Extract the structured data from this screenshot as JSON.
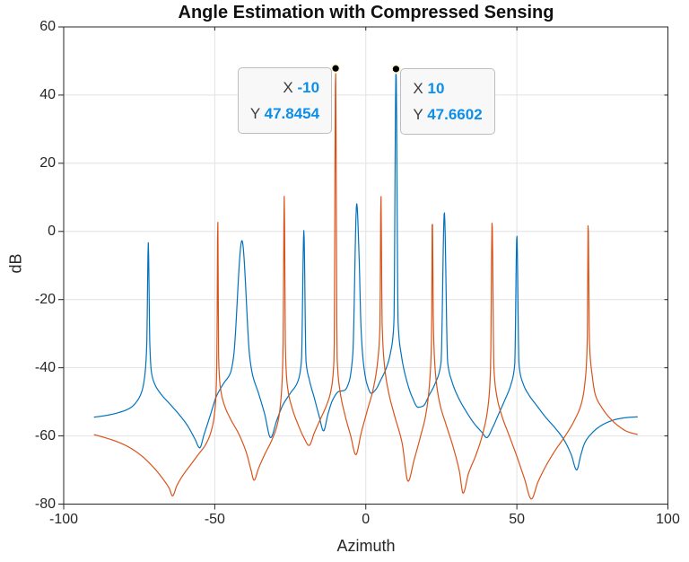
{
  "chart_data": {
    "type": "line",
    "title": "Angle Estimation with Compressed Sensing",
    "xlabel": "Azimuth",
    "ylabel": "dB",
    "xlim": [
      -100,
      100
    ],
    "ylim": [
      -80,
      60
    ],
    "x_ticks": [
      "-100",
      "-50",
      "0",
      "50",
      "100"
    ],
    "x_tick_values": [
      -100,
      -50,
      0,
      50,
      100
    ],
    "y_ticks": [
      "-80",
      "-60",
      "-40",
      "-20",
      "0",
      "20",
      "40",
      "60"
    ],
    "y_tick_values": [
      -80,
      -60,
      -40,
      -20,
      0,
      20,
      40,
      60
    ],
    "grid": true,
    "legend": null,
    "style": {
      "axis_color": "#262626",
      "grid_color": "#e2e2e2",
      "tick_len_out": 6,
      "tick_len_in": 4,
      "datatip_value_color": "#0d8ee8",
      "datatip_label_color": "#3c3c3c",
      "marker_fill": "#000000",
      "marker_ring": "#fffbdc"
    },
    "series": [
      {
        "name": "blue-spectrum",
        "color": "#0072BD",
        "points": [
          [
            -90,
            -54.5
          ],
          [
            -86,
            -54
          ],
          [
            -82,
            -53.2
          ],
          [
            -78,
            -51.8
          ],
          [
            -75.5,
            -49.5
          ],
          [
            -74,
            -46.5
          ],
          [
            -73,
            -41
          ],
          [
            -72.5,
            -33
          ],
          [
            -72,
            -3.3
          ],
          [
            -71.5,
            -33
          ],
          [
            -71,
            -41
          ],
          [
            -70,
            -44.5
          ],
          [
            -68,
            -47.5
          ],
          [
            -65,
            -50.5
          ],
          [
            -62,
            -53.5
          ],
          [
            -59,
            -57
          ],
          [
            -56.5,
            -61
          ],
          [
            -55,
            -63.5
          ],
          [
            -53.5,
            -59.5
          ],
          [
            -51.5,
            -54
          ],
          [
            -49.5,
            -48.5
          ],
          [
            -47,
            -44.5
          ],
          [
            -44.8,
            -41.5
          ],
          [
            -43.8,
            -37
          ],
          [
            -41,
            -2.7
          ],
          [
            -38.4,
            -37
          ],
          [
            -37.5,
            -42
          ],
          [
            -35.5,
            -47.5
          ],
          [
            -33.5,
            -53.5
          ],
          [
            -31.5,
            -60.5
          ],
          [
            -29.5,
            -55.5
          ],
          [
            -27.5,
            -51
          ],
          [
            -25,
            -47.5
          ],
          [
            -22.5,
            -44
          ],
          [
            -21.3,
            -38
          ],
          [
            -20.5,
            0.3
          ],
          [
            -19.8,
            -38
          ],
          [
            -18.7,
            -43.5
          ],
          [
            -17,
            -49
          ],
          [
            -15.5,
            -54
          ],
          [
            -14,
            -58.5
          ],
          [
            -12.5,
            -53.5
          ],
          [
            -11,
            -49.5
          ],
          [
            -9,
            -47
          ],
          [
            -7,
            -46.6
          ],
          [
            -5.5,
            -44
          ],
          [
            -4.3,
            -36
          ],
          [
            -3,
            8.1
          ],
          [
            -2.2,
            -8
          ],
          [
            -1.6,
            -28
          ],
          [
            -0.8,
            -38.5
          ],
          [
            0.3,
            -44.5
          ],
          [
            1.8,
            -47.5
          ],
          [
            3.2,
            -46.5
          ],
          [
            5,
            -43.5
          ],
          [
            6.6,
            -40.5
          ],
          [
            8.2,
            -35.5
          ],
          [
            9.3,
            -27
          ],
          [
            10,
            47.6602
          ],
          [
            10.7,
            -27
          ],
          [
            11.8,
            -36.5
          ],
          [
            13.3,
            -43
          ],
          [
            15.3,
            -48.5
          ],
          [
            17.3,
            -51.6
          ],
          [
            19,
            -51.2
          ],
          [
            21,
            -48
          ],
          [
            23,
            -44.5
          ],
          [
            24.9,
            -38.5
          ],
          [
            26,
            5.6
          ],
          [
            27.1,
            -38.5
          ],
          [
            28.5,
            -44
          ],
          [
            30.5,
            -48.5
          ],
          [
            33,
            -52.5
          ],
          [
            36,
            -56.5
          ],
          [
            38.5,
            -59
          ],
          [
            40,
            -60.5
          ],
          [
            42,
            -57.5
          ],
          [
            44,
            -53.5
          ],
          [
            46,
            -49.5
          ],
          [
            48,
            -45
          ],
          [
            49.3,
            -39
          ],
          [
            50,
            -1.1
          ],
          [
            50.7,
            -39
          ],
          [
            52,
            -44.5
          ],
          [
            54,
            -48
          ],
          [
            56.5,
            -51
          ],
          [
            59.5,
            -54.5
          ],
          [
            62.5,
            -57.5
          ],
          [
            65.5,
            -61
          ],
          [
            68,
            -65.5
          ],
          [
            69.8,
            -70
          ],
          [
            71.2,
            -65.5
          ],
          [
            72.5,
            -62
          ],
          [
            74.5,
            -59.5
          ],
          [
            77,
            -57.5
          ],
          [
            80,
            -56
          ],
          [
            83,
            -55.1
          ],
          [
            86.5,
            -54.6
          ],
          [
            90,
            -54.4
          ]
        ]
      },
      {
        "name": "orange-spectrum",
        "color": "#D95319",
        "points": [
          [
            -90,
            -59.6
          ],
          [
            -86,
            -60.6
          ],
          [
            -82,
            -61.8
          ],
          [
            -78,
            -63.5
          ],
          [
            -74,
            -66
          ],
          [
            -70,
            -69.5
          ],
          [
            -67,
            -72.8
          ],
          [
            -65,
            -75.5
          ],
          [
            -64,
            -77.6
          ],
          [
            -62.5,
            -74.5
          ],
          [
            -60.5,
            -71.5
          ],
          [
            -58,
            -68.5
          ],
          [
            -55.5,
            -65.5
          ],
          [
            -53,
            -62.5
          ],
          [
            -51,
            -58
          ],
          [
            -49.8,
            -51
          ],
          [
            -49.3,
            -38
          ],
          [
            -49,
            4.6
          ],
          [
            -48.7,
            -38
          ],
          [
            -48.1,
            -46
          ],
          [
            -46.8,
            -51
          ],
          [
            -44.8,
            -55
          ],
          [
            -42,
            -59.5
          ],
          [
            -39.5,
            -65
          ],
          [
            -38,
            -70
          ],
          [
            -37,
            -73
          ],
          [
            -35.5,
            -69.5
          ],
          [
            -33.5,
            -65.5
          ],
          [
            -31,
            -61
          ],
          [
            -29,
            -55.5
          ],
          [
            -27.9,
            -47
          ],
          [
            -27.4,
            -35
          ],
          [
            -27,
            10.3
          ],
          [
            -26.6,
            -35
          ],
          [
            -26,
            -45
          ],
          [
            -24.5,
            -51.5
          ],
          [
            -22.5,
            -56.5
          ],
          [
            -20.5,
            -60.5
          ],
          [
            -18.8,
            -62.8
          ],
          [
            -17,
            -59
          ],
          [
            -15,
            -55
          ],
          [
            -13,
            -51
          ],
          [
            -11.5,
            -46.5
          ],
          [
            -10.5,
            -37
          ],
          [
            -10,
            47.8454
          ],
          [
            -9.5,
            -37
          ],
          [
            -8.5,
            -47
          ],
          [
            -7,
            -53.5
          ],
          [
            -5,
            -60
          ],
          [
            -3.3,
            -65.5
          ],
          [
            -1.5,
            -59
          ],
          [
            0.5,
            -52.5
          ],
          [
            2.5,
            -46
          ],
          [
            4,
            -37.5
          ],
          [
            4.7,
            -27
          ],
          [
            5,
            11.2
          ],
          [
            5.4,
            -27
          ],
          [
            6.2,
            -39.5
          ],
          [
            7.5,
            -47
          ],
          [
            9.5,
            -54
          ],
          [
            12,
            -62
          ],
          [
            14,
            -73.3
          ],
          [
            16,
            -67
          ],
          [
            18,
            -60.5
          ],
          [
            20,
            -53
          ],
          [
            21.3,
            -42
          ],
          [
            21.8,
            -29
          ],
          [
            22,
            5.2
          ],
          [
            22.4,
            -29
          ],
          [
            23.1,
            -42
          ],
          [
            24.5,
            -50.5
          ],
          [
            26.5,
            -56.5
          ],
          [
            29,
            -63.5
          ],
          [
            31,
            -70.5
          ],
          [
            32.2,
            -76.8
          ],
          [
            34,
            -71
          ],
          [
            36.5,
            -65.5
          ],
          [
            38.8,
            -59
          ],
          [
            40.5,
            -51
          ],
          [
            41.3,
            -40
          ],
          [
            41.8,
            3.1
          ],
          [
            42.4,
            -40
          ],
          [
            43.3,
            -48
          ],
          [
            45,
            -54
          ],
          [
            47.5,
            -60
          ],
          [
            50,
            -66
          ],
          [
            52.5,
            -72.5
          ],
          [
            54.8,
            -78.5
          ],
          [
            57,
            -73.5
          ],
          [
            59.5,
            -69
          ],
          [
            62.5,
            -64.5
          ],
          [
            66,
            -60
          ],
          [
            69,
            -55.5
          ],
          [
            71.5,
            -50
          ],
          [
            72.8,
            -42
          ],
          [
            73.3,
            -32
          ],
          [
            73.6,
            3.2
          ],
          [
            74,
            -32
          ],
          [
            74.9,
            -42
          ],
          [
            76,
            -48
          ],
          [
            78,
            -51.5
          ],
          [
            80.5,
            -54.5
          ],
          [
            83.5,
            -57
          ],
          [
            86.5,
            -58.7
          ],
          [
            90,
            -59.6
          ]
        ]
      }
    ],
    "datatips": [
      {
        "series": "orange-spectrum",
        "side": "left",
        "x_label": "X",
        "x_value": "-10",
        "y_label": "Y",
        "y_value": "47.8454",
        "x": -10,
        "y": 47.8454
      },
      {
        "series": "blue-spectrum",
        "side": "right",
        "x_label": "X",
        "x_value": "10",
        "y_label": "Y",
        "y_value": "47.6602",
        "x": 10,
        "y": 47.6602
      }
    ]
  }
}
